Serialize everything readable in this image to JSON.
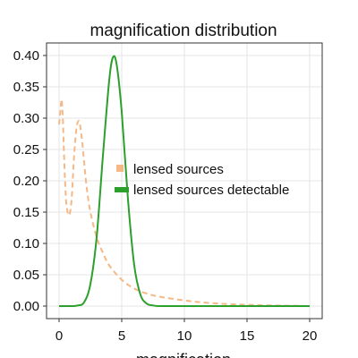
{
  "chart_data": {
    "type": "line",
    "title": "magnification distribution",
    "xlabel": "magnification",
    "ylabel": "",
    "xlim": [
      -1,
      21
    ],
    "ylim": [
      -0.02,
      0.42
    ],
    "xticks": [
      0,
      5,
      10,
      15,
      20
    ],
    "yticks": [
      0.0,
      0.05,
      0.1,
      0.15,
      0.2,
      0.25,
      0.3,
      0.35,
      0.4
    ],
    "xtick_labels": [
      "0",
      "5",
      "10",
      "15",
      "20"
    ],
    "ytick_labels": [
      "0.00",
      "0.05",
      "0.10",
      "0.15",
      "0.20",
      "0.25",
      "0.30",
      "0.35",
      "0.40"
    ],
    "grid": true,
    "legend_position": "center-right",
    "series": [
      {
        "name": "lensed sources",
        "color": "#f5b987",
        "line_style": "dashed",
        "x": [
          0.0,
          0.1,
          0.2,
          0.3,
          0.4,
          0.5,
          0.6,
          0.8,
          1.0,
          1.2,
          1.4,
          1.6,
          1.8,
          2.0,
          2.2,
          2.5,
          3.0,
          3.5,
          4.0,
          5.0,
          6.0,
          7.0,
          8.0,
          10.0,
          12.0,
          15.0,
          20.0
        ],
        "y": [
          0.29,
          0.31,
          0.33,
          0.3,
          0.24,
          0.19,
          0.16,
          0.145,
          0.17,
          0.24,
          0.285,
          0.295,
          0.27,
          0.23,
          0.19,
          0.15,
          0.11,
          0.085,
          0.065,
          0.042,
          0.028,
          0.02,
          0.015,
          0.009,
          0.005,
          0.002,
          0.0
        ]
      },
      {
        "name": "lensed sources detectable",
        "color": "#2ca02c",
        "line_style": "solid",
        "x": [
          0.0,
          1.0,
          1.5,
          2.0,
          2.5,
          3.0,
          3.5,
          4.0,
          4.3,
          4.6,
          5.0,
          5.5,
          6.0,
          6.5,
          7.0,
          7.5,
          8.0,
          9.0,
          10.0,
          20.0
        ],
        "y": [
          0.0,
          0.0,
          0.001,
          0.006,
          0.035,
          0.11,
          0.24,
          0.36,
          0.397,
          0.385,
          0.31,
          0.17,
          0.065,
          0.018,
          0.004,
          0.001,
          0.0,
          0.0,
          0.0,
          0.0
        ]
      }
    ]
  }
}
